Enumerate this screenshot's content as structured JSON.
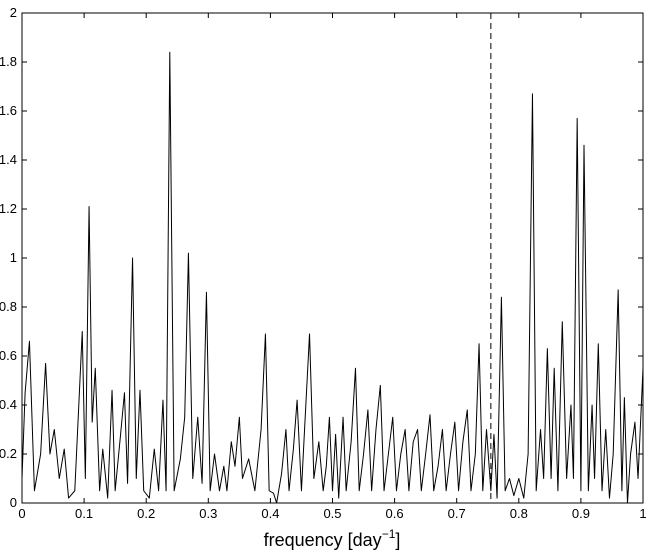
{
  "chart_data": {
    "type": "line",
    "xlabel": {
      "text": "frequency [day",
      "superscript": "−1",
      "suffix": "]"
    },
    "x": [
      0,
      0.005,
      0.012,
      0.02,
      0.03,
      0.038,
      0.045,
      0.052,
      0.06,
      0.068,
      0.075,
      0.085,
      0.097,
      0.102,
      0.108,
      0.113,
      0.118,
      0.125,
      0.13,
      0.138,
      0.145,
      0.15,
      0.158,
      0.165,
      0.17,
      0.178,
      0.184,
      0.19,
      0.196,
      0.205,
      0.213,
      0.22,
      0.227,
      0.232,
      0.238,
      0.245,
      0.255,
      0.262,
      0.268,
      0.275,
      0.283,
      0.29,
      0.297,
      0.303,
      0.31,
      0.318,
      0.325,
      0.33,
      0.337,
      0.343,
      0.35,
      0.355,
      0.365,
      0.375,
      0.385,
      0.392,
      0.398,
      0.405,
      0.41,
      0.418,
      0.425,
      0.43,
      0.437,
      0.443,
      0.45,
      0.455,
      0.463,
      0.47,
      0.478,
      0.485,
      0.49,
      0.495,
      0.5,
      0.505,
      0.51,
      0.517,
      0.522,
      0.53,
      0.537,
      0.543,
      0.55,
      0.557,
      0.563,
      0.57,
      0.577,
      0.583,
      0.59,
      0.597,
      0.603,
      0.61,
      0.617,
      0.623,
      0.63,
      0.637,
      0.643,
      0.65,
      0.657,
      0.663,
      0.67,
      0.677,
      0.683,
      0.69,
      0.697,
      0.703,
      0.71,
      0.717,
      0.723,
      0.73,
      0.736,
      0.742,
      0.748,
      0.755,
      0.76,
      0.765,
      0.772,
      0.778,
      0.785,
      0.792,
      0.8,
      0.808,
      0.815,
      0.822,
      0.828,
      0.835,
      0.84,
      0.846,
      0.852,
      0.857,
      0.863,
      0.87,
      0.877,
      0.884,
      0.888,
      0.894,
      0.9,
      0.905,
      0.912,
      0.918,
      0.922,
      0.928,
      0.934,
      0.94,
      0.946,
      0.952,
      0.96,
      0.966,
      0.97,
      0.975,
      0.98,
      0.987,
      0.992,
      1.0
    ],
    "series": [
      {
        "color": "#000000",
        "values": [
          0.1,
          0.45,
          0.66,
          0.05,
          0.2,
          0.57,
          0.2,
          0.3,
          0.1,
          0.22,
          0.02,
          0.05,
          0.7,
          0.1,
          1.21,
          0.33,
          0.55,
          0.05,
          0.22,
          0.02,
          0.46,
          0.05,
          0.26,
          0.45,
          0.08,
          1.0,
          0.1,
          0.46,
          0.05,
          0.02,
          0.22,
          0.05,
          0.42,
          0.05,
          1.84,
          0.05,
          0.18,
          0.35,
          1.02,
          0.1,
          0.35,
          0.08,
          0.86,
          0.05,
          0.2,
          0.05,
          0.15,
          0.05,
          0.25,
          0.15,
          0.35,
          0.1,
          0.18,
          0.05,
          0.3,
          0.69,
          0.05,
          0.04,
          0.0,
          0.12,
          0.3,
          0.05,
          0.22,
          0.42,
          0.05,
          0.3,
          0.69,
          0.1,
          0.25,
          0.05,
          0.15,
          0.35,
          0.05,
          0.28,
          0.02,
          0.35,
          0.05,
          0.25,
          0.55,
          0.05,
          0.2,
          0.38,
          0.05,
          0.3,
          0.48,
          0.05,
          0.2,
          0.35,
          0.05,
          0.2,
          0.3,
          0.05,
          0.25,
          0.3,
          0.05,
          0.2,
          0.36,
          0.05,
          0.15,
          0.3,
          0.05,
          0.2,
          0.33,
          0.05,
          0.25,
          0.38,
          0.05,
          0.2,
          0.65,
          0.05,
          0.3,
          0.05,
          0.28,
          0.02,
          0.84,
          0.05,
          0.1,
          0.03,
          0.1,
          0.02,
          0.2,
          1.67,
          0.05,
          0.3,
          0.1,
          0.63,
          0.1,
          0.55,
          0.05,
          0.74,
          0.1,
          0.4,
          0.1,
          1.57,
          0.05,
          1.46,
          0.05,
          0.4,
          0.1,
          0.65,
          0.05,
          0.3,
          0.02,
          0.2,
          0.87,
          0.05,
          0.43,
          0.0,
          0.2,
          0.33,
          0.1,
          0.55
        ]
      }
    ],
    "vline": {
      "x": 0.755,
      "style": "dashed"
    },
    "xlim": [
      0,
      1
    ],
    "ylim": [
      0,
      2
    ],
    "xticks": [
      0,
      0.1,
      0.2,
      0.3,
      0.4,
      0.5,
      0.6,
      0.7,
      0.8,
      0.9,
      1
    ],
    "yticks": [
      0,
      0.2,
      0.4,
      0.6,
      0.8,
      1,
      1.2,
      1.4,
      1.6,
      1.8,
      2
    ],
    "grid": false
  }
}
